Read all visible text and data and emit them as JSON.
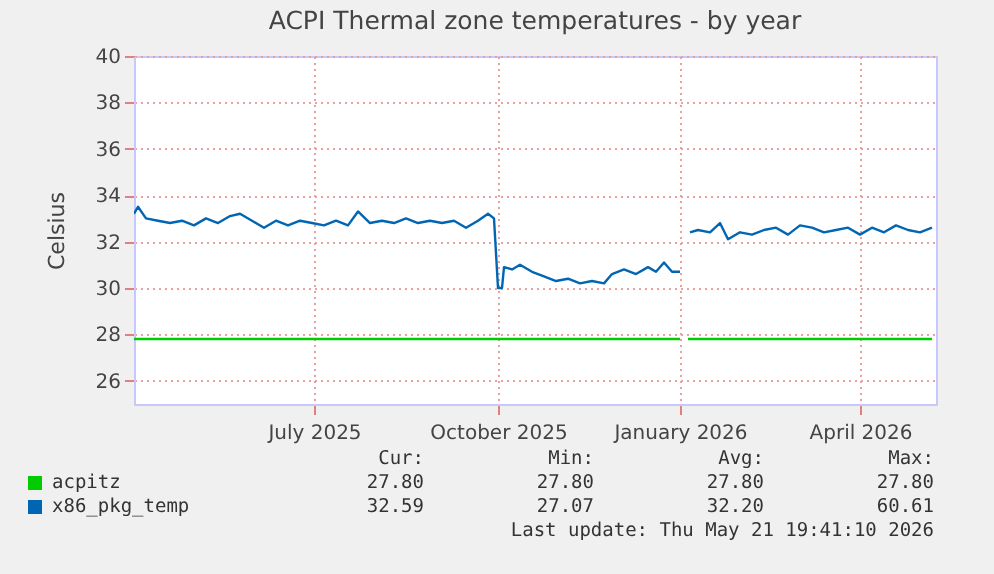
{
  "chart_data": {
    "type": "line",
    "title": "ACPI Thermal zone temperatures - by year",
    "ylabel": "Celsius",
    "xlim": [
      "2025-04-16",
      "2026-05-22"
    ],
    "xticks": [
      {
        "value": "2025-07-15",
        "label": "July 2025"
      },
      {
        "value": "2025-10-15",
        "label": "October 2025"
      },
      {
        "value": "2026-01-14",
        "label": "January 2026"
      },
      {
        "value": "2026-04-14",
        "label": "April 2026"
      }
    ],
    "ylim": [
      25,
      40
    ],
    "yticks": [
      26,
      28,
      30,
      32,
      34,
      36,
      38,
      40
    ],
    "grid": true,
    "legend": "bottom",
    "series": [
      {
        "name": "acpitz",
        "color": "#00cc00",
        "x": [
          "2025-04-16",
          "2026-01-14",
          "2026-01-16",
          "2026-01-18",
          "2026-05-20"
        ],
        "values": [
          27.8,
          27.8,
          null,
          27.8,
          27.8
        ]
      },
      {
        "name": "x86_pkg_temp",
        "color": "#0066b3",
        "x": [
          "2025-04-16",
          "2025-04-18",
          "2025-04-22",
          "2025-04-28",
          "2025-05-04",
          "2025-05-10",
          "2025-05-16",
          "2025-05-22",
          "2025-05-28",
          "2025-06-03",
          "2025-06-08",
          "2025-06-14",
          "2025-06-20",
          "2025-06-26",
          "2025-07-02",
          "2025-07-08",
          "2025-07-14",
          "2025-07-20",
          "2025-07-26",
          "2025-08-01",
          "2025-08-06",
          "2025-08-12",
          "2025-08-18",
          "2025-08-24",
          "2025-08-30",
          "2025-09-05",
          "2025-09-11",
          "2025-09-17",
          "2025-09-23",
          "2025-09-29",
          "2025-10-05",
          "2025-10-10",
          "2025-10-13",
          "2025-10-15",
          "2025-10-17",
          "2025-10-18",
          "2025-10-22",
          "2025-10-26",
          "2025-11-01",
          "2025-11-07",
          "2025-11-13",
          "2025-11-19",
          "2025-11-25",
          "2025-12-01",
          "2025-12-07",
          "2025-12-11",
          "2025-12-17",
          "2025-12-23",
          "2025-12-29",
          "2026-01-02",
          "2026-01-06",
          "2026-01-10",
          "2026-01-14",
          "2026-01-16",
          "2026-01-19",
          "2026-01-23",
          "2026-01-29",
          "2026-02-03",
          "2026-02-07",
          "2026-02-13",
          "2026-02-19",
          "2026-02-25",
          "2026-03-03",
          "2026-03-09",
          "2026-03-15",
          "2026-03-21",
          "2026-03-27",
          "2026-04-02",
          "2026-04-08",
          "2026-04-14",
          "2026-04-20",
          "2026-04-26",
          "2026-05-02",
          "2026-05-08",
          "2026-05-14",
          "2026-05-20"
        ],
        "values": [
          33.2,
          33.5,
          33.0,
          32.9,
          32.8,
          32.9,
          32.7,
          33.0,
          32.8,
          33.1,
          33.2,
          32.9,
          32.6,
          32.9,
          32.7,
          32.9,
          32.8,
          32.7,
          32.9,
          32.7,
          33.3,
          32.8,
          32.9,
          32.8,
          33.0,
          32.8,
          32.9,
          32.8,
          32.9,
          32.6,
          32.9,
          33.2,
          33.0,
          30.0,
          30.0,
          30.9,
          30.8,
          31.0,
          30.7,
          30.5,
          30.3,
          30.4,
          30.2,
          30.3,
          30.2,
          30.6,
          30.8,
          30.6,
          30.9,
          30.7,
          31.1,
          30.7,
          30.7,
          null,
          32.4,
          32.5,
          32.4,
          32.8,
          32.1,
          32.4,
          32.3,
          32.5,
          32.6,
          32.3,
          32.7,
          32.6,
          32.4,
          32.5,
          32.6,
          32.3,
          32.6,
          32.4,
          32.7,
          32.5,
          32.4,
          32.6
        ]
      }
    ],
    "annotations": [
      "Cur:",
      "Min:",
      "Avg:",
      "Max:",
      "27.80",
      "27.80",
      "27.80",
      "27.80",
      "32.59",
      "27.07",
      "32.20",
      "60.61",
      "Last update: Thu May 21 19:41:10 2026"
    ]
  }
}
